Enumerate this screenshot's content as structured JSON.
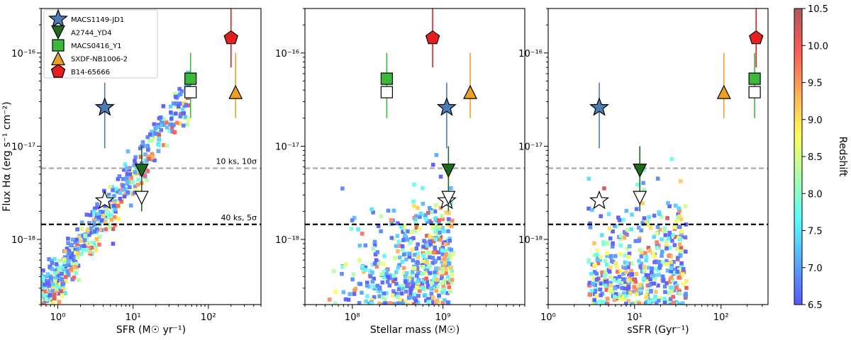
{
  "chart_data": [
    {
      "type": "scatter",
      "panel": "left",
      "xlabel": "SFR (M☉ yr⁻¹)",
      "ylabel": "Flux Hα (erg s⁻¹ cm⁻²)",
      "xscale": "log",
      "yscale": "log",
      "xlim": [
        0.6,
        500
      ],
      "ylim": [
        2e-19,
        3e-16
      ],
      "xticks": [
        {
          "value": 1,
          "label": "10⁰"
        },
        {
          "value": 10,
          "label": "10¹"
        },
        {
          "value": 100,
          "label": "10²"
        }
      ],
      "yticks": [
        {
          "value": 1e-18,
          "label": "10⁻¹⁸"
        },
        {
          "value": 1e-17,
          "label": "10⁻¹⁷"
        },
        {
          "value": 1e-16,
          "label": "10⁻¹⁶"
        }
      ],
      "hlines": [
        {
          "y": 5.8e-18,
          "color": "#aaaaaa",
          "label": "10 ks, 10σ"
        },
        {
          "y": 1.45e-18,
          "color": "#000000",
          "label": "40 ks, 5σ"
        }
      ],
      "objects": [
        {
          "name": "MACS1149-JD1",
          "marker": "star",
          "color": "#4a7db5",
          "x": 4.2,
          "y": 2.6e-17,
          "yerr": [
            9.5e-18,
            4.8e-17
          ],
          "open_x": 4.2,
          "open_y": 2.6e-18
        },
        {
          "name": "A2744_YD4",
          "marker": "tri_down",
          "color": "#1e6b1e",
          "x": 13,
          "y": 5.5e-18,
          "yerr": [
            2e-18,
            1e-17
          ],
          "open_x": 13,
          "open_y": 2.8e-18
        },
        {
          "name": "MACS0416_Y1",
          "marker": "square",
          "color": "#3cb93c",
          "x": 58,
          "y": 5.3e-17,
          "yerr": [
            2e-17,
            1e-16
          ],
          "open_x": 58,
          "open_y": 3.8e-17
        },
        {
          "name": "SXDF-NB1006-2",
          "marker": "tri_up",
          "color": "#f0a020",
          "x": 230,
          "y": 3.8e-17,
          "yerr": [
            2e-17,
            1e-16
          ]
        },
        {
          "name": "B14-65666",
          "marker": "pentagon",
          "color": "#e61e1e",
          "x": 200,
          "y": 1.45e-16,
          "yerr": [
            7e-17,
            3e-16
          ]
        }
      ],
      "cloud": {
        "kind": "sfr",
        "xmin": 0.6,
        "xmax": 60,
        "n": 700
      }
    },
    {
      "type": "scatter",
      "panel": "middle",
      "xlabel": "Stellar mass (M☉)",
      "xscale": "log",
      "yscale": "log",
      "xlim": [
        30000000.0,
        8000000000.0
      ],
      "ylim": [
        2e-19,
        3e-16
      ],
      "xticks": [
        {
          "value": 100000000.0,
          "label": "10⁸"
        },
        {
          "value": 1000000000.0,
          "label": "10⁹"
        }
      ],
      "yticks": [
        {
          "value": 1e-18,
          "label": "10⁻¹⁸"
        },
        {
          "value": 1e-17,
          "label": "10⁻¹⁷"
        },
        {
          "value": 1e-16,
          "label": "10⁻¹⁶"
        }
      ],
      "hlines": [
        {
          "y": 5.8e-18,
          "color": "#aaaaaa"
        },
        {
          "y": 1.45e-18,
          "color": "#000000"
        }
      ],
      "objects": [
        {
          "name": "MACS1149-JD1",
          "marker": "star",
          "color": "#4a7db5",
          "x": 1100000000.0,
          "y": 2.6e-17,
          "yerr": [
            9.5e-18,
            4.8e-17
          ],
          "open_x": 1100000000.0,
          "open_y": 2.6e-18
        },
        {
          "name": "A2744_YD4",
          "marker": "tri_down",
          "color": "#1e6b1e",
          "x": 1150000000.0,
          "y": 5.5e-18,
          "yerr": [
            2e-18,
            1e-17
          ],
          "open_x": 1150000000.0,
          "open_y": 2.8e-18
        },
        {
          "name": "MACS0416_Y1",
          "marker": "square",
          "color": "#3cb93c",
          "x": 240000000.0,
          "y": 5.3e-17,
          "yerr": [
            2e-17,
            1e-16
          ],
          "open_x": 240000000.0,
          "open_y": 3.8e-17
        },
        {
          "name": "SXDF-NB1006-2",
          "marker": "tri_up",
          "color": "#f0a020",
          "x": 2000000000.0,
          "y": 3.8e-17,
          "yerr": [
            2e-17,
            1e-16
          ]
        },
        {
          "name": "B14-65666",
          "marker": "pentagon",
          "color": "#e61e1e",
          "x": 770000000.0,
          "y": 1.45e-16,
          "yerr": [
            7e-17,
            3e-16
          ]
        }
      ],
      "cloud": {
        "kind": "mass",
        "xmin": 30000000.0,
        "xmax": 1300000000.0,
        "n": 900
      }
    },
    {
      "type": "scatter",
      "panel": "right",
      "xlabel": "sSFR (Gyr⁻¹)",
      "xscale": "log",
      "yscale": "log",
      "xlim": [
        1,
        350
      ],
      "ylim": [
        2e-19,
        3e-16
      ],
      "xticks": [
        {
          "value": 1,
          "label": "10⁰"
        },
        {
          "value": 10,
          "label": "10¹"
        },
        {
          "value": 100,
          "label": "10²"
        }
      ],
      "yticks": [
        {
          "value": 1e-18,
          "label": "10⁻¹⁸"
        },
        {
          "value": 1e-17,
          "label": "10⁻¹⁷"
        },
        {
          "value": 1e-16,
          "label": "10⁻¹⁶"
        }
      ],
      "hlines": [
        {
          "y": 5.8e-18,
          "color": "#aaaaaa"
        },
        {
          "y": 1.45e-18,
          "color": "#000000"
        }
      ],
      "objects": [
        {
          "name": "MACS1149-JD1",
          "marker": "star",
          "color": "#4a7db5",
          "x": 3.9,
          "y": 2.6e-17,
          "yerr": [
            9.5e-18,
            4.8e-17
          ],
          "open_x": 3.9,
          "open_y": 2.6e-18
        },
        {
          "name": "A2744_YD4",
          "marker": "tri_down",
          "color": "#1e6b1e",
          "x": 11.5,
          "y": 5.5e-18,
          "yerr": [
            2e-18,
            1e-17
          ],
          "open_x": 11.5,
          "open_y": 2.8e-18
        },
        {
          "name": "MACS0416_Y1",
          "marker": "square",
          "color": "#3cb93c",
          "x": 245,
          "y": 5.3e-17,
          "yerr": [
            2e-17,
            1e-16
          ],
          "open_x": 245,
          "open_y": 3.8e-17
        },
        {
          "name": "SXDF-NB1006-2",
          "marker": "tri_up",
          "color": "#f0a020",
          "x": 108,
          "y": 3.8e-17,
          "yerr": [
            2e-17,
            1e-16
          ]
        },
        {
          "name": "B14-65666",
          "marker": "pentagon",
          "color": "#e61e1e",
          "x": 255,
          "y": 1.45e-16,
          "yerr": [
            7e-17,
            3e-16
          ]
        }
      ],
      "cloud": {
        "kind": "ssfr",
        "xmin": 1.5,
        "xmax": 40,
        "n": 900
      }
    }
  ],
  "legend": {
    "placement": "top-left of left panel",
    "entries": [
      {
        "label": "MACS1149-JD1",
        "marker": "star",
        "color": "#4a7db5"
      },
      {
        "label": "A2744_YD4",
        "marker": "tri_down",
        "color": "#1e6b1e"
      },
      {
        "label": "MACS0416_Y1",
        "marker": "square",
        "color": "#3cb93c"
      },
      {
        "label": "SXDF-NB1006-2",
        "marker": "tri_up",
        "color": "#f0a020"
      },
      {
        "label": "B14-65666",
        "marker": "pentagon",
        "color": "#e61e1e"
      }
    ]
  },
  "colorbar": {
    "label": "Redshift",
    "range": [
      6.5,
      10.5
    ],
    "ticks": [
      "6.5",
      "7.0",
      "7.5",
      "8.0",
      "8.5",
      "9.0",
      "9.5",
      "10.0",
      "10.5"
    ],
    "colormap": "jet"
  }
}
